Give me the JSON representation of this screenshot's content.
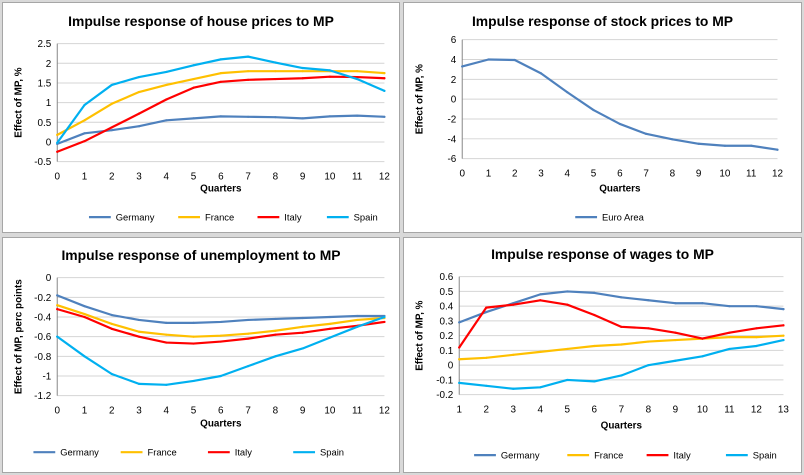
{
  "chart_data": [
    {
      "type": "line",
      "title": "Impulse response of house prices to MP",
      "xlabel": "Quarters",
      "ylabel": "Effect of MP, %",
      "x": [
        0,
        1,
        2,
        3,
        4,
        5,
        6,
        7,
        8,
        9,
        10,
        11,
        12
      ],
      "ylim": [
        -0.5,
        2.5
      ],
      "yticks": [
        -0.5,
        0,
        0.5,
        1,
        1.5,
        2,
        2.5
      ],
      "ytick_labels": [
        "-0.5",
        "0",
        "0.5",
        "1",
        "1.5",
        "2",
        "2.5"
      ],
      "grid": true,
      "legend": "bottom",
      "series": [
        {
          "name": "Germany",
          "color": "#4f81bd",
          "values": [
            -0.05,
            0.22,
            0.3,
            0.4,
            0.55,
            0.6,
            0.65,
            0.64,
            0.63,
            0.6,
            0.65,
            0.67,
            0.64
          ]
        },
        {
          "name": "France",
          "color": "#ffc000",
          "values": [
            0.18,
            0.55,
            0.97,
            1.27,
            1.45,
            1.6,
            1.75,
            1.8,
            1.8,
            1.8,
            1.8,
            1.8,
            1.75
          ]
        },
        {
          "name": "Italy",
          "color": "#ff0000",
          "values": [
            -0.25,
            0.02,
            0.37,
            0.72,
            1.08,
            1.38,
            1.53,
            1.58,
            1.6,
            1.62,
            1.66,
            1.65,
            1.62
          ]
        },
        {
          "name": "Spain",
          "color": "#00b0f0",
          "values": [
            -0.02,
            0.94,
            1.45,
            1.65,
            1.78,
            1.95,
            2.1,
            2.17,
            2.02,
            1.88,
            1.82,
            1.6,
            1.3
          ]
        }
      ]
    },
    {
      "type": "line",
      "title": "Impulse response of stock prices to MP",
      "xlabel": "Quarters",
      "ylabel": "Effect of MP, %",
      "x": [
        0,
        1,
        2,
        3,
        4,
        5,
        6,
        7,
        8,
        9,
        10,
        11,
        12
      ],
      "ylim": [
        -6,
        6
      ],
      "yticks": [
        -6,
        -4,
        -2,
        0,
        2,
        4,
        6
      ],
      "ytick_labels": [
        "-6",
        "-4",
        "-2",
        "0",
        "2",
        "4",
        "6"
      ],
      "grid": true,
      "legend": "bottom",
      "series": [
        {
          "name": "Euro Area",
          "color": "#4f81bd",
          "values": [
            3.3,
            4.0,
            3.95,
            2.6,
            0.7,
            -1.1,
            -2.5,
            -3.5,
            -4.05,
            -4.5,
            -4.7,
            -4.7,
            -5.1
          ]
        }
      ]
    },
    {
      "type": "line",
      "title": "Impulse response of unemployment to MP",
      "xlabel": "Quarters",
      "ylabel": "Effect of MP, perc points",
      "x": [
        0,
        1,
        2,
        3,
        4,
        5,
        6,
        7,
        8,
        9,
        10,
        11,
        12
      ],
      "ylim": [
        -1.2,
        0
      ],
      "yticks": [
        -1.2,
        -1,
        -0.8,
        -0.6,
        -0.4,
        -0.2,
        0
      ],
      "ytick_labels": [
        "-1.2",
        "-1",
        "-0.8",
        "-0.6",
        "-0.4",
        "-0.2",
        "0"
      ],
      "grid": true,
      "legend": "bottom",
      "series": [
        {
          "name": "Germany",
          "color": "#4f81bd",
          "values": [
            -0.18,
            -0.29,
            -0.38,
            -0.43,
            -0.46,
            -0.46,
            -0.45,
            -0.43,
            -0.42,
            -0.41,
            -0.4,
            -0.39,
            -0.39
          ]
        },
        {
          "name": "France",
          "color": "#ffc000",
          "values": [
            -0.28,
            -0.37,
            -0.47,
            -0.55,
            -0.58,
            -0.6,
            -0.59,
            -0.57,
            -0.54,
            -0.5,
            -0.47,
            -0.43,
            -0.41
          ]
        },
        {
          "name": "Italy",
          "color": "#ff0000",
          "values": [
            -0.32,
            -0.4,
            -0.52,
            -0.6,
            -0.66,
            -0.67,
            -0.65,
            -0.62,
            -0.58,
            -0.56,
            -0.52,
            -0.49,
            -0.45
          ]
        },
        {
          "name": "Spain",
          "color": "#00b0f0",
          "values": [
            -0.6,
            -0.8,
            -0.98,
            -1.08,
            -1.09,
            -1.05,
            -1.0,
            -0.9,
            -0.8,
            -0.72,
            -0.61,
            -0.5,
            -0.4
          ]
        }
      ]
    },
    {
      "type": "line",
      "title": "Impulse response of wages to MP",
      "xlabel": "Quarters",
      "ylabel": "Effect of MP, %",
      "x": [
        1,
        2,
        3,
        4,
        5,
        6,
        7,
        8,
        9,
        10,
        11,
        12,
        13
      ],
      "ylim": [
        -0.2,
        0.6
      ],
      "yticks": [
        -0.2,
        -0.1,
        0,
        0.1,
        0.2,
        0.3,
        0.4,
        0.5,
        0.6
      ],
      "ytick_labels": [
        "-0.2",
        "-0.1",
        "0",
        "0.1",
        "0.2",
        "0.3",
        "0.4",
        "0.5",
        "0.6"
      ],
      "grid": true,
      "legend": "bottom",
      "series": [
        {
          "name": "Germany",
          "color": "#4f81bd",
          "values": [
            0.29,
            0.36,
            0.42,
            0.48,
            0.5,
            0.49,
            0.46,
            0.44,
            0.42,
            0.42,
            0.4,
            0.4,
            0.38
          ]
        },
        {
          "name": "France",
          "color": "#ffc000",
          "values": [
            0.04,
            0.05,
            0.07,
            0.09,
            0.11,
            0.13,
            0.14,
            0.16,
            0.17,
            0.18,
            0.19,
            0.19,
            0.2
          ]
        },
        {
          "name": "Italy",
          "color": "#ff0000",
          "values": [
            0.12,
            0.39,
            0.41,
            0.44,
            0.41,
            0.34,
            0.26,
            0.25,
            0.22,
            0.18,
            0.22,
            0.25,
            0.27
          ]
        },
        {
          "name": "Spain",
          "color": "#00b0f0",
          "values": [
            -0.12,
            -0.14,
            -0.16,
            -0.15,
            -0.1,
            -0.11,
            -0.07,
            0.0,
            0.03,
            0.06,
            0.11,
            0.13,
            0.17
          ]
        }
      ]
    }
  ]
}
